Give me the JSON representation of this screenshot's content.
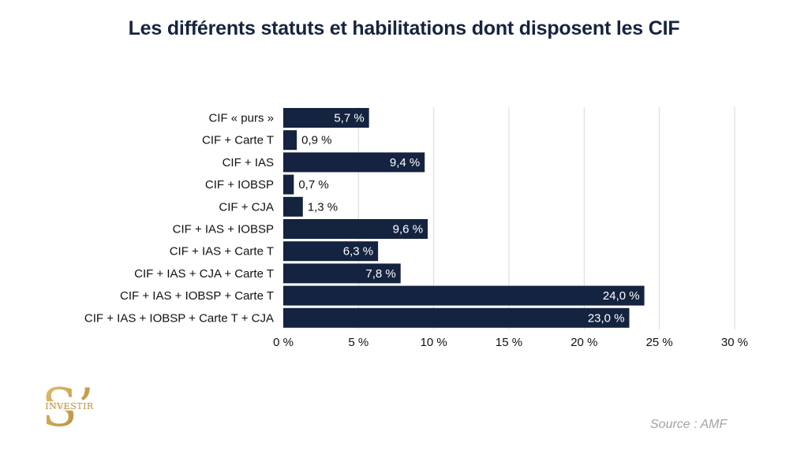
{
  "title": "Les différents statuts et habilitations dont disposent les CIF",
  "source": "Source : AMF",
  "logo": {
    "text_big": "S’",
    "text_small": "INVESTIR"
  },
  "colors": {
    "bar": "#14233f",
    "title": "#16243f",
    "grid": "#d9d9d9",
    "logo_gold": "#c9a24f"
  },
  "chart_data": {
    "type": "bar",
    "orientation": "horizontal",
    "title": "Les différents statuts et habilitations dont disposent les CIF",
    "categories": [
      "CIF « purs »",
      "CIF + Carte T",
      "CIF + IAS",
      "CIF + IOBSP",
      "CIF + CJA",
      "CIF + IAS + IOBSP",
      "CIF + IAS + Carte T",
      "CIF + IAS + CJA + Carte T",
      "CIF + IAS + IOBSP + Carte T",
      "CIF + IAS + IOBSP + Carte T + CJA"
    ],
    "values": [
      5.7,
      0.9,
      9.4,
      0.7,
      1.3,
      9.6,
      6.3,
      7.8,
      24.0,
      23.0
    ],
    "value_labels": [
      "5,7 %",
      "0,9 %",
      "9,4 %",
      "0,7 %",
      "1,3 %",
      "9,6 %",
      "6,3 %",
      "7,8 %",
      "24,0 %",
      "23,0 %"
    ],
    "xticks": [
      0,
      5,
      10,
      15,
      20,
      25,
      30
    ],
    "xtick_labels": [
      "0 %",
      "5 %",
      "10 %",
      "15 %",
      "20 %",
      "25 %",
      "30 %"
    ],
    "xlim": [
      0,
      30
    ],
    "grid": true,
    "xlabel": "",
    "ylabel": ""
  }
}
